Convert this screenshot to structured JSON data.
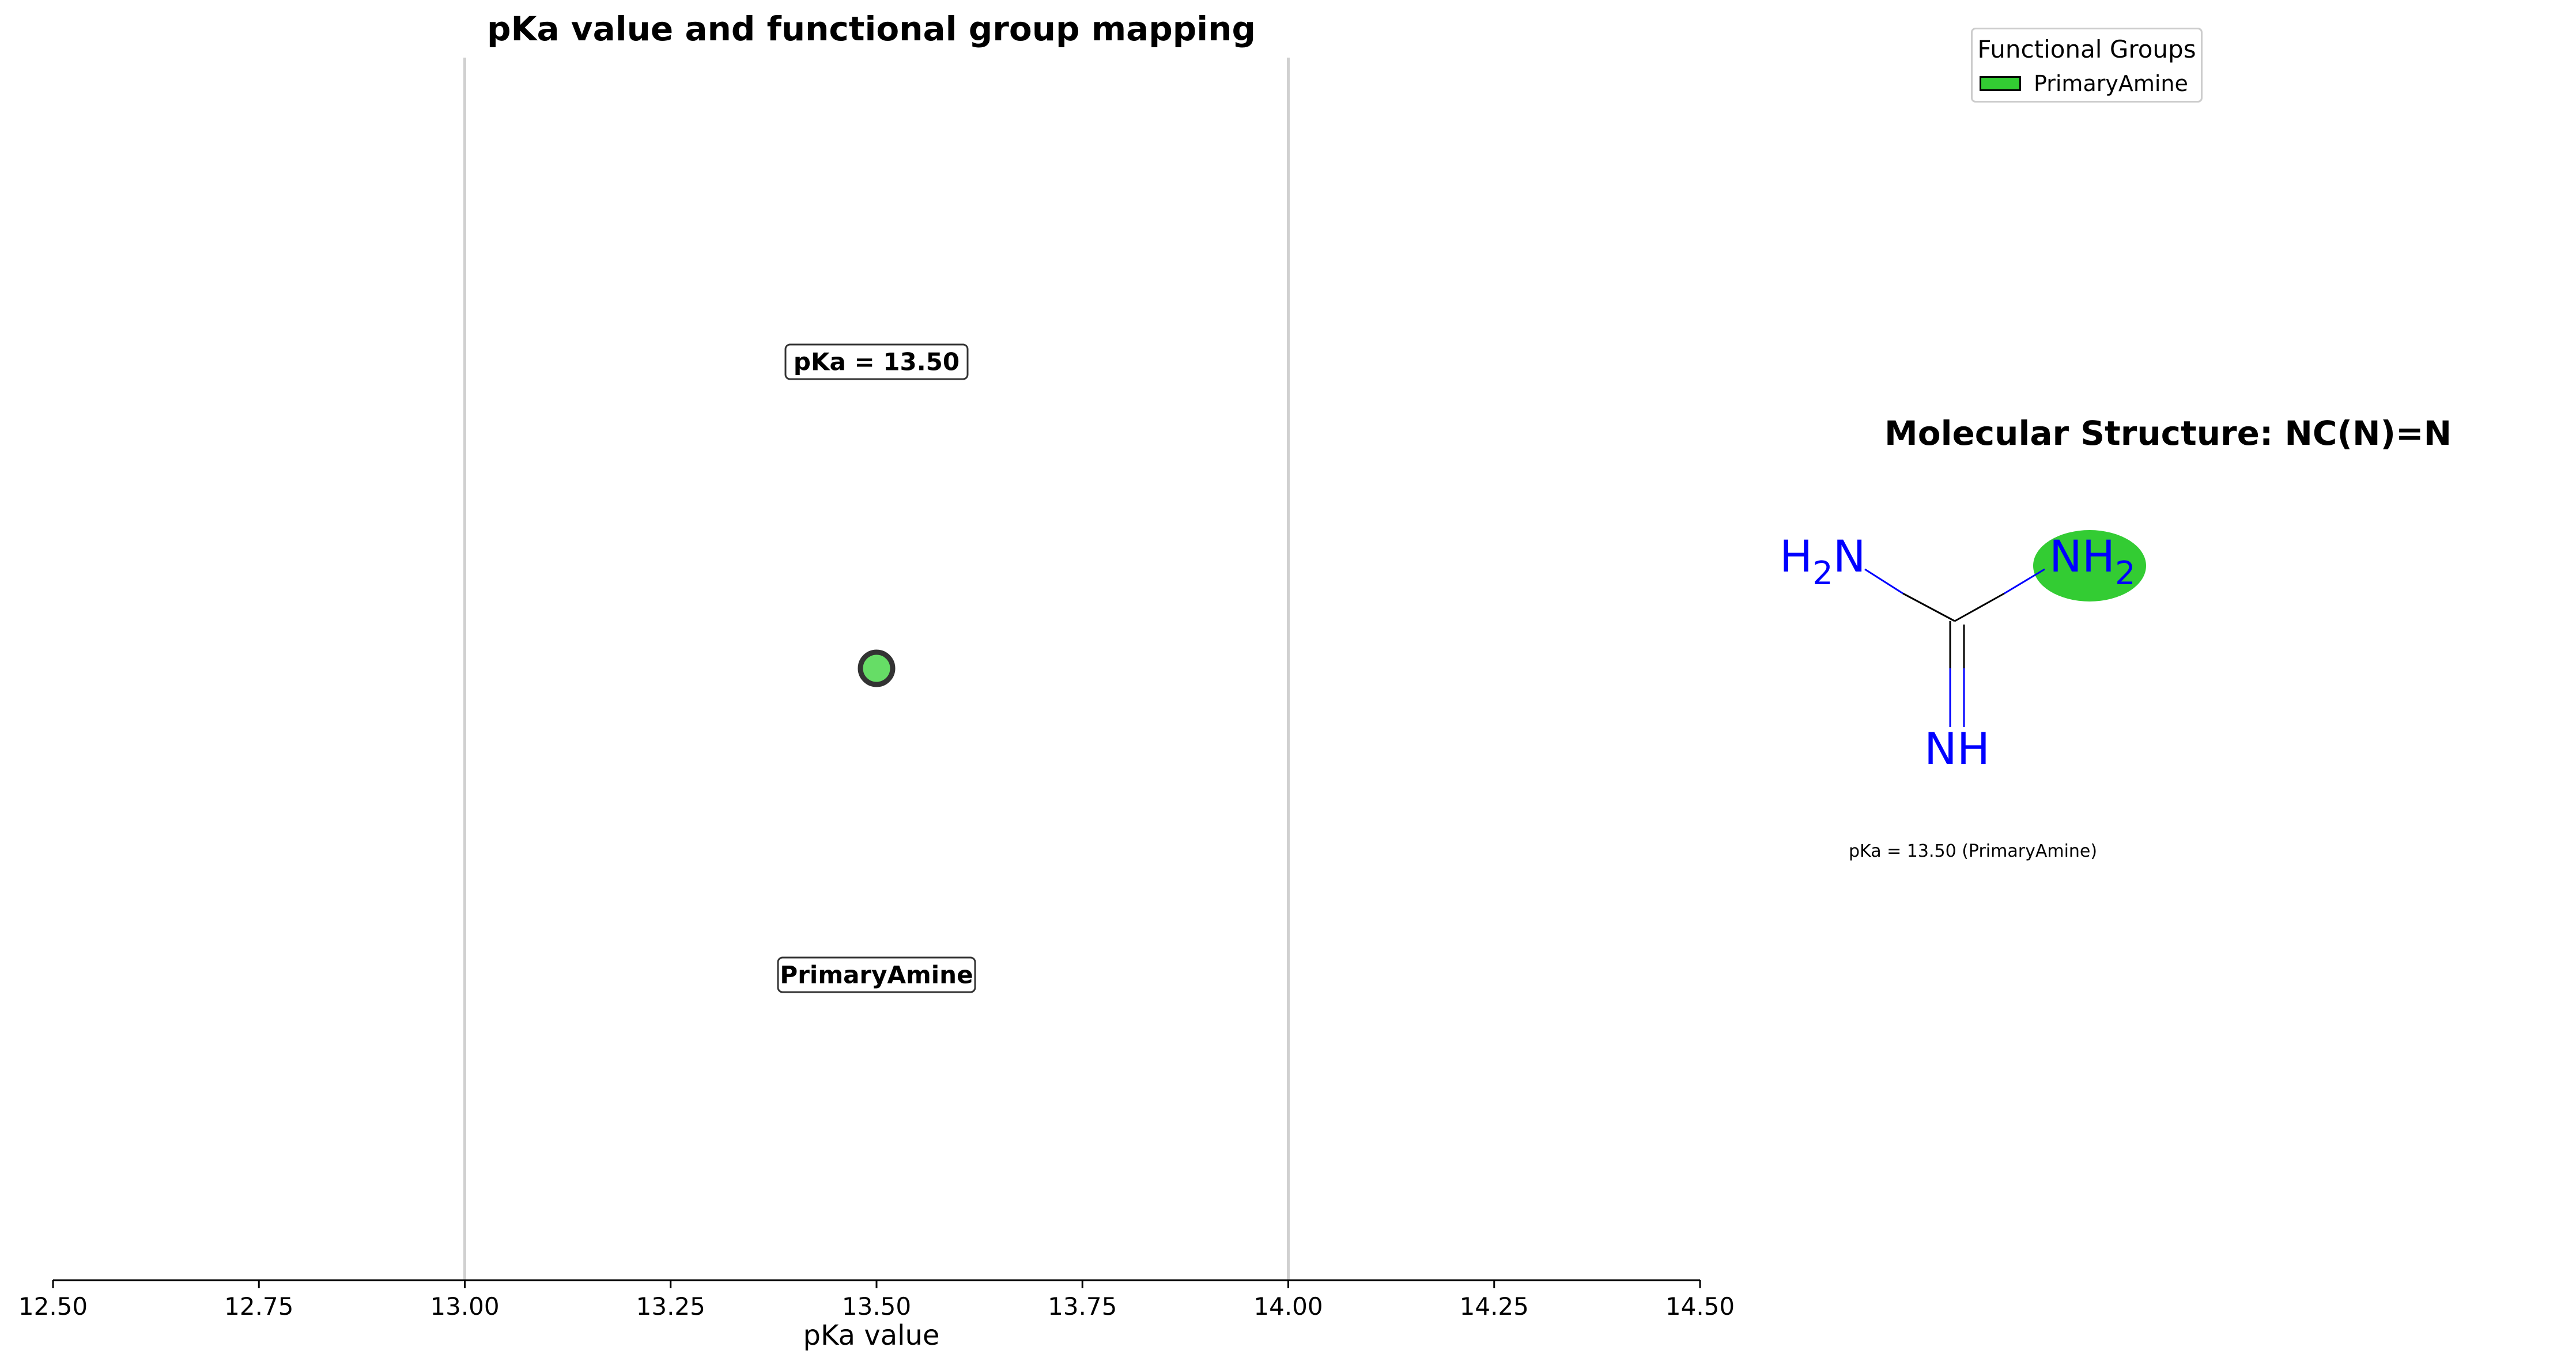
{
  "chart_data": {
    "type": "scatter",
    "title": "pKa value and functional group mapping",
    "xlabel": "pKa value",
    "ylabel": "",
    "xlim": [
      12.5,
      14.5
    ],
    "xticks": [
      12.5,
      12.75,
      13.0,
      13.25,
      13.5,
      13.75,
      14.0,
      14.25,
      14.5
    ],
    "xtick_labels": [
      "12.50",
      "12.75",
      "13.00",
      "13.25",
      "13.50",
      "13.75",
      "14.00",
      "14.25",
      "14.50"
    ],
    "reference_lines_x": [
      13.0,
      14.0
    ],
    "grid": false,
    "points": [
      {
        "x": 13.5,
        "group": "PrimaryAmine",
        "value_label": "pKa = 13.50",
        "group_label": "PrimaryAmine"
      }
    ],
    "legend": {
      "title": "Functional Groups",
      "placement": "top-right",
      "entries": [
        {
          "label": "PrimaryAmine",
          "color": "#33cc33"
        }
      ]
    }
  },
  "molecule": {
    "title": "Molecular Structure: NC(N)=N",
    "atom_labels": {
      "left_amine": "H",
      "left_amine_sub": "2",
      "left_amine_n": "N",
      "right_amine": "NH",
      "right_amine_sub": "2",
      "imine": "NH"
    },
    "caption": "pKa = 13.50 (PrimaryAmine)",
    "highlight_color": "#33cc33"
  },
  "colors": {
    "point_fill": "#66dd66",
    "point_edge": "#333333",
    "nitrogen": "#0000ff",
    "reference_line": "#d0d0d0"
  }
}
